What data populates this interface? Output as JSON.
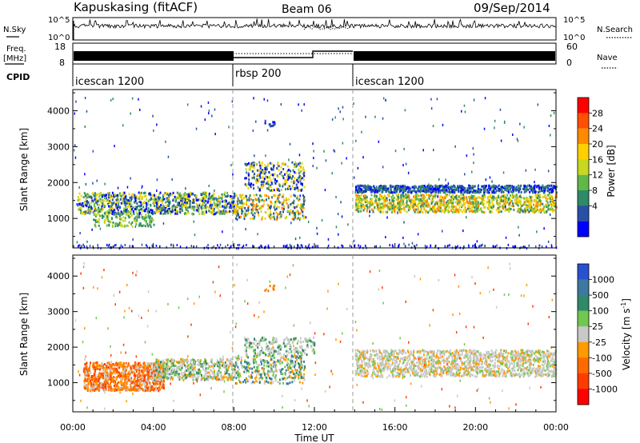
{
  "header": {
    "radar": "Kapuskasing (fitACF)",
    "beam": "Beam 06",
    "date": "09/Sep/2014"
  },
  "noise_panel": {
    "left_label": "N.Sky",
    "left_ticks": [
      "10^5",
      "10^0"
    ],
    "right_ticks": [
      "10^5",
      "10^0"
    ],
    "right_label": "N.Search"
  },
  "freq_panel": {
    "left_label_1": "Freq.",
    "left_label_2": "[MHz]",
    "left_ticks": [
      "18",
      "8"
    ],
    "right_ticks": [
      "60",
      "0"
    ],
    "right_label": "Nave"
  },
  "cpid": {
    "label": "CPID",
    "segments": [
      {
        "name": "icescan 1200",
        "start_hour": 0
      },
      {
        "name": "rbsp 200",
        "start_hour": 8
      },
      {
        "name": "icescan 1200",
        "start_hour": 14
      }
    ]
  },
  "power_colorbar": {
    "label": "Power [dB]",
    "ticks": [
      "28",
      "24",
      "20",
      "16",
      "12",
      "8",
      "4"
    ],
    "colors": [
      "#ff0000",
      "#ff4f00",
      "#ff8a00",
      "#ffd000",
      "#c8d820",
      "#60b848",
      "#2e8a68",
      "#2850a8",
      "#0000ff"
    ]
  },
  "velocity_colorbar": {
    "label_main": "Velocity",
    "label_unit": "[m s",
    "label_exp": "-1",
    "label_close": "]",
    "ticks": [
      "1000",
      "500",
      "100",
      "25",
      "-25",
      "-100",
      "-500",
      "-1000"
    ],
    "colors": [
      "#2850d0",
      "#3c78a0",
      "#2e8a68",
      "#70c850",
      "#c8c8c8",
      "#ff9a00",
      "#ff6a00",
      "#ff3c00",
      "#ff0000"
    ]
  },
  "chart_data": [
    {
      "type": "heatmap",
      "name": "power",
      "ylabel": "Slant Range [km]",
      "x_range_hours": [
        0,
        24
      ],
      "ylim": [
        180,
        4590
      ],
      "yticks": [
        1000,
        2000,
        3000,
        4000
      ],
      "dashed_vertical_lines_hours": [
        8,
        14
      ],
      "echo_regions": [
        {
          "t0": 0.3,
          "t1": 8,
          "r0": 1100,
          "r1": 1750,
          "typical": "12-20 dB"
        },
        {
          "t0": 8,
          "t1": 11.5,
          "r0": 1000,
          "r1": 2600,
          "typical": "4-20 dB"
        },
        {
          "t0": 14,
          "t1": 24,
          "r0": 1150,
          "r1": 1950,
          "typical": "8-20 dB"
        }
      ]
    },
    {
      "type": "heatmap",
      "name": "velocity",
      "ylabel": "Slant Range [km]",
      "x_range_hours": [
        0,
        24
      ],
      "ylim": [
        180,
        4590
      ],
      "yticks": [
        1000,
        2000,
        3000,
        4000
      ],
      "dashed_vertical_lines_hours": [
        8,
        14
      ],
      "echo_regions": [
        {
          "t0": 1,
          "t1": 4,
          "r0": 800,
          "r1": 1600,
          "typical": "-100 to -500 m/s"
        },
        {
          "t0": 4,
          "t1": 8,
          "r0": 1100,
          "r1": 1700,
          "typical": "-25 to 25 m/s"
        },
        {
          "t0": 8,
          "t1": 11.5,
          "r0": 1000,
          "r1": 2300,
          "typical": "25 to 500 m/s"
        },
        {
          "t0": 14,
          "t1": 24,
          "r0": 1150,
          "r1": 1950,
          "typical": "-25 to 25 m/s"
        }
      ]
    }
  ],
  "x_axis": {
    "label": "Time UT",
    "ticks": [
      "00:00",
      "04:00",
      "08:00",
      "12:00",
      "16:00",
      "20:00",
      "00:00"
    ]
  }
}
